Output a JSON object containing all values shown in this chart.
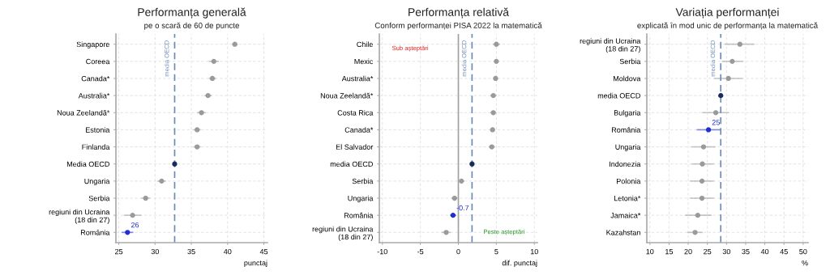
{
  "chart_data": [
    {
      "type": "scatter",
      "orientation": "horizontal",
      "title": "Performanța generală",
      "subtitle": "pe o scară de 60 de puncte",
      "xlabel": "punctaj",
      "categories": [
        "Singapore",
        "Coreea",
        "Canada*",
        "Australia*",
        "Noua Zeelandă*",
        "Estonia",
        "Finlanda",
        "Media OECD",
        "Ungaria",
        "Serbia",
        "regiuni din Ucraina\n(18 din 27)",
        "România"
      ],
      "values": [
        41.0,
        38.1,
        37.9,
        37.3,
        36.4,
        35.8,
        35.8,
        32.7,
        30.9,
        28.7,
        26.9,
        26.2
      ],
      "errors": [
        0.4,
        0.7,
        0.5,
        0.5,
        0.6,
        0.5,
        0.5,
        0.1,
        0.6,
        0.6,
        1.2,
        0.8
      ],
      "colors": [
        "#9a9a9a",
        "#9a9a9a",
        "#9a9a9a",
        "#9a9a9a",
        "#9a9a9a",
        "#9a9a9a",
        "#9a9a9a",
        "#1a2a5a",
        "#9a9a9a",
        "#9a9a9a",
        "#9a9a9a",
        "#1f2fd0"
      ],
      "value_labels": [
        null,
        null,
        null,
        null,
        null,
        null,
        null,
        null,
        null,
        null,
        null,
        "26"
      ],
      "xlim": [
        24.6,
        45.5
      ],
      "xticks": [
        25,
        30,
        35,
        40,
        45
      ],
      "ref_lines": [
        {
          "axis": "x",
          "value": 32.7,
          "label": "media OECD",
          "color": "#6a8bb5",
          "line_style": "dashed"
        }
      ],
      "grid": true,
      "marker": "circle"
    },
    {
      "type": "scatter",
      "orientation": "horizontal",
      "title": "Performanța relativă",
      "subtitle": "Conform performanței PISA 2022 la matematică",
      "xlabel": "dif. punctaj",
      "categories": [
        "Chile",
        "Mexic",
        "Australia*",
        "Noua Zeelandă*",
        "Costa Rica",
        "Canada*",
        "El Salvador",
        "media OECD",
        "Serbia",
        "Ungaria",
        "România",
        "regiuni din Ucraina\n(18 din 27)"
      ],
      "values": [
        5.0,
        5.0,
        4.9,
        4.6,
        4.6,
        4.5,
        4.4,
        1.8,
        0.4,
        -0.5,
        -0.7,
        -1.6
      ],
      "errors": [
        0.5,
        0.3,
        0.3,
        0.4,
        0.4,
        0.3,
        0.4,
        0.1,
        0.4,
        0.4,
        0.4,
        0.6
      ],
      "colors": [
        "#9a9a9a",
        "#9a9a9a",
        "#9a9a9a",
        "#9a9a9a",
        "#9a9a9a",
        "#9a9a9a",
        "#9a9a9a",
        "#1a2a5a",
        "#9a9a9a",
        "#9a9a9a",
        "#1f2fd0",
        "#9a9a9a"
      ],
      "value_labels": [
        null,
        null,
        null,
        null,
        null,
        null,
        null,
        null,
        null,
        null,
        "-0.7",
        null
      ],
      "xlim": [
        -10.4,
        10.4
      ],
      "xticks": [
        -10,
        -5,
        0,
        5,
        10
      ],
      "ref_lines": [
        {
          "axis": "x",
          "value": 0,
          "color": "#a0a0a0",
          "line_style": "solid"
        },
        {
          "axis": "x",
          "value": 1.8,
          "label": "media OECD",
          "color": "#6a8bb5",
          "line_style": "dashed"
        }
      ],
      "annotations": [
        "Sub așteptări",
        "Peste așteptări"
      ],
      "grid": true,
      "marker": "circle"
    },
    {
      "type": "scatter",
      "orientation": "horizontal",
      "title": "Variația performanței",
      "subtitle": "explicată în mod unic de performanța la matematică",
      "xlabel": "%",
      "categories": [
        "regiuni din Ucraina\n(18 din 27)",
        "Serbia",
        "Moldova",
        "media OECD",
        "Bulgaria",
        "România",
        "Ungaria",
        "Indonezia",
        "Polonia",
        "Letonia*",
        "Jamaica*",
        "Kazahstan"
      ],
      "values": [
        33.5,
        31.5,
        30.5,
        28.5,
        27.2,
        25.3,
        24.0,
        23.7,
        23.6,
        23.6,
        22.5,
        21.8
      ],
      "errors": [
        [
          29.5,
          37.3
        ],
        [
          28.8,
          34.3
        ],
        [
          26.8,
          34.2
        ],
        [
          28.1,
          28.9
        ],
        [
          23.6,
          30.6
        ],
        [
          22.2,
          28.5
        ],
        [
          20.8,
          27.1
        ],
        [
          20.9,
          26.7
        ],
        [
          20.5,
          26.7
        ],
        [
          20.5,
          26.7
        ],
        [
          19.2,
          26.1
        ],
        [
          19.8,
          23.8
        ]
      ],
      "colors": [
        "#9a9a9a",
        "#9a9a9a",
        "#9a9a9a",
        "#1a2a5a",
        "#9a9a9a",
        "#1f2fd0",
        "#9a9a9a",
        "#9a9a9a",
        "#9a9a9a",
        "#9a9a9a",
        "#9a9a9a",
        "#9a9a9a"
      ],
      "value_labels": [
        null,
        null,
        null,
        null,
        null,
        "25",
        null,
        null,
        null,
        null,
        null,
        null
      ],
      "xlim": [
        9.2,
        51.3
      ],
      "xticks": [
        10,
        15,
        20,
        25,
        30,
        35,
        40,
        45,
        50
      ],
      "ref_lines": [
        {
          "axis": "x",
          "value": 28.5,
          "label": "media OECD",
          "color": "#6a8bb5",
          "line_style": "dashed"
        }
      ],
      "grid": true,
      "marker": "circle"
    }
  ]
}
